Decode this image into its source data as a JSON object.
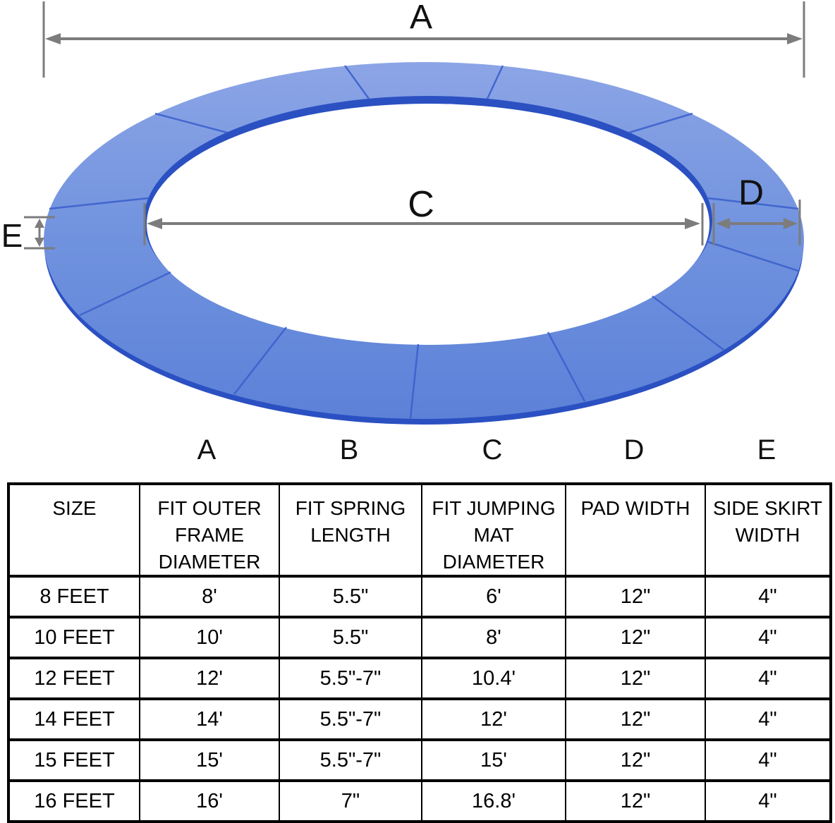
{
  "diagram": {
    "dim_labels": {
      "a": "A",
      "c": "C",
      "d": "D",
      "e": "E"
    },
    "colors": {
      "pad_top": "#8ca5e6",
      "pad_mid": "#7092de",
      "pad_bottom": "#5c81d8",
      "pad_edge": "#2b50c2",
      "segment_line": "#3c61cc",
      "dimension": "#7c7c7c"
    }
  },
  "column_letters": [
    "A",
    "B",
    "C",
    "D",
    "E"
  ],
  "table": {
    "headers": [
      "SIZE",
      "FIT OUTER FRAME DIAMETER",
      "FIT SPRING LENGTH",
      "FIT JUMPING MAT DIAMETER",
      "PAD WIDTH",
      "SIDE SKIRT WIDTH"
    ],
    "rows": [
      [
        "8 FEET",
        "8'",
        "5.5\"",
        "6'",
        "12\"",
        "4\""
      ],
      [
        "10 FEET",
        "10'",
        "5.5\"",
        "8'",
        "12\"",
        "4\""
      ],
      [
        "12 FEET",
        "12'",
        "5.5\"-7\"",
        "10.4'",
        "12\"",
        "4\""
      ],
      [
        "14 FEET",
        "14'",
        "5.5\"-7\"",
        "12'",
        "12\"",
        "4\""
      ],
      [
        "15 FEET",
        "15'",
        "5.5\"-7\"",
        "15'",
        "12\"",
        "4\""
      ],
      [
        "16 FEET",
        "16'",
        "7\"",
        "16.8'",
        "12\"",
        "4\""
      ]
    ]
  }
}
